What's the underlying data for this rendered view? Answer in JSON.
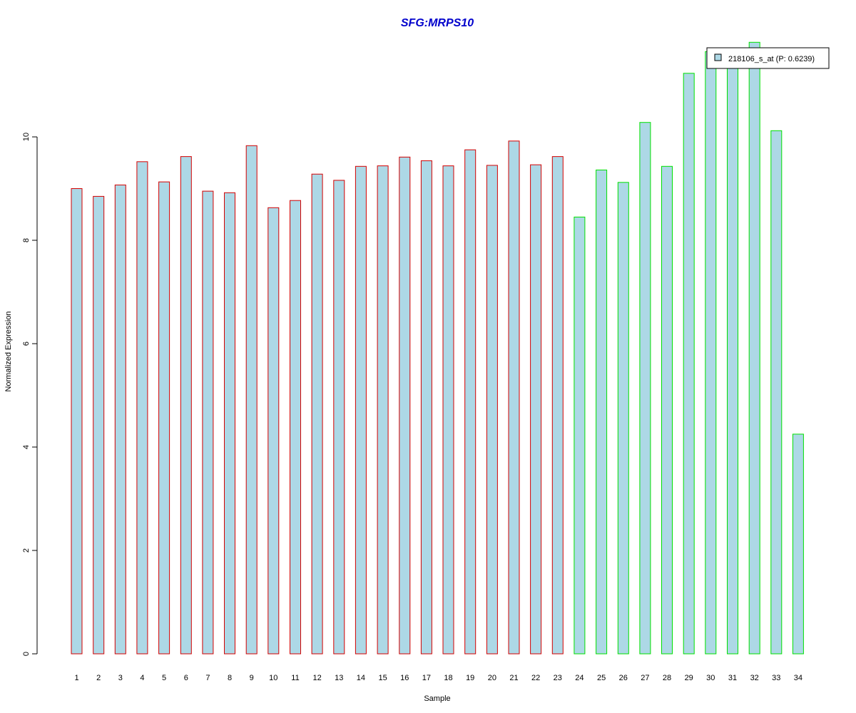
{
  "chart_data": {
    "type": "bar",
    "title": "SFG:MRPS10",
    "xlabel": "Sample",
    "ylabel": "Normalized Expression",
    "ylim": [
      0,
      12
    ],
    "yticks": [
      0,
      2,
      4,
      6,
      8,
      10
    ],
    "categories": [
      "1",
      "2",
      "3",
      "4",
      "5",
      "6",
      "7",
      "8",
      "9",
      "10",
      "11",
      "12",
      "13",
      "14",
      "15",
      "16",
      "17",
      "18",
      "19",
      "20",
      "21",
      "22",
      "23",
      "24",
      "25",
      "26",
      "27",
      "28",
      "29",
      "30",
      "31",
      "32",
      "33",
      "34"
    ],
    "series": [
      {
        "name": "218106_s_at (P: 0.6239)",
        "values": [
          9.0,
          8.85,
          9.07,
          9.52,
          9.13,
          9.62,
          8.95,
          8.92,
          9.83,
          8.63,
          8.77,
          9.28,
          9.16,
          9.43,
          9.44,
          9.61,
          9.54,
          9.44,
          9.75,
          9.45,
          9.92,
          9.46,
          9.62,
          8.45,
          9.36,
          9.12,
          10.28,
          9.43,
          11.23,
          11.65,
          11.6,
          11.83,
          10.12,
          4.25
        ]
      }
    ],
    "group_border_colors": [
      "#d40000",
      "#d40000",
      "#d40000",
      "#d40000",
      "#d40000",
      "#d40000",
      "#d40000",
      "#d40000",
      "#d40000",
      "#d40000",
      "#d40000",
      "#d40000",
      "#d40000",
      "#d40000",
      "#d40000",
      "#d40000",
      "#d40000",
      "#d40000",
      "#d40000",
      "#d40000",
      "#d40000",
      "#d40000",
      "#d40000",
      "#00e000",
      "#00e000",
      "#00e000",
      "#00e000",
      "#00e000",
      "#00e000",
      "#00e000",
      "#00e000",
      "#00e000",
      "#00e000",
      "#00e000"
    ],
    "bar_fill": "#add8e6",
    "title_color": "#0000cc",
    "legend_position": "top-right",
    "grid": false
  }
}
